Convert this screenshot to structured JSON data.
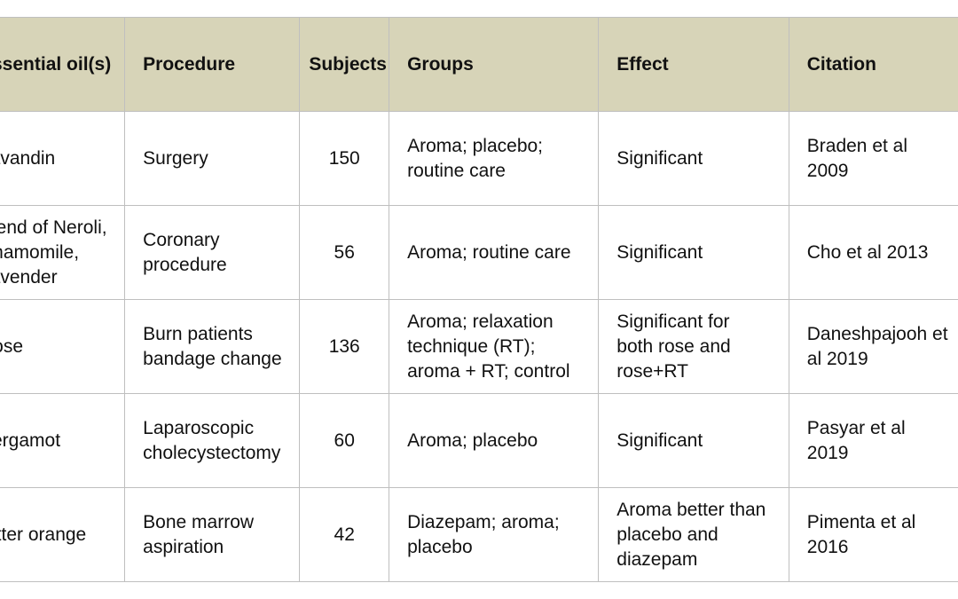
{
  "table": {
    "headers": [
      "Essential oil(s)",
      "Procedure",
      "Subjects",
      "Groups",
      "Effect",
      "Citation"
    ],
    "rows": [
      {
        "oil": [
          "Lavandin"
        ],
        "procedure": [
          "Surgery"
        ],
        "subjects": "150",
        "groups": [
          "Aroma; placebo;",
          "routine care"
        ],
        "effect": [
          "Significant"
        ],
        "citation": [
          "Braden et al",
          "2009"
        ]
      },
      {
        "oil": [
          "Blend of Neroli,",
          "Chamomile,",
          "Lavender"
        ],
        "procedure": [
          "Coronary",
          "procedure"
        ],
        "subjects": "56",
        "groups": [
          "Aroma; routine care"
        ],
        "effect": [
          "Significant"
        ],
        "citation": [
          "Cho et al 2013"
        ]
      },
      {
        "oil": [
          "Rose"
        ],
        "procedure": [
          "Burn patients",
          "bandage change"
        ],
        "subjects": "136",
        "groups": [
          "Aroma; relaxation",
          "technique (RT);",
          "aroma + RT; control"
        ],
        "effect": [
          "Significant for",
          "both rose and",
          "rose+RT"
        ],
        "citation": [
          "Daneshpajooh et",
          "al 2019"
        ]
      },
      {
        "oil": [
          "Bergamot"
        ],
        "procedure": [
          "Laparoscopic",
          "cholecystectomy"
        ],
        "subjects": "60",
        "groups": [
          "Aroma; placebo"
        ],
        "effect": [
          "Significant"
        ],
        "citation": [
          "Pasyar et al",
          "2019"
        ]
      },
      {
        "oil": [
          "Bitter orange"
        ],
        "procedure": [
          "Bone marrow",
          "aspiration"
        ],
        "subjects": "42",
        "groups": [
          "Diazepam; aroma;",
          "placebo"
        ],
        "effect": [
          "Aroma better than",
          "placebo and",
          "diazepam"
        ],
        "citation": [
          "Pimenta et al",
          "2016"
        ]
      }
    ]
  }
}
